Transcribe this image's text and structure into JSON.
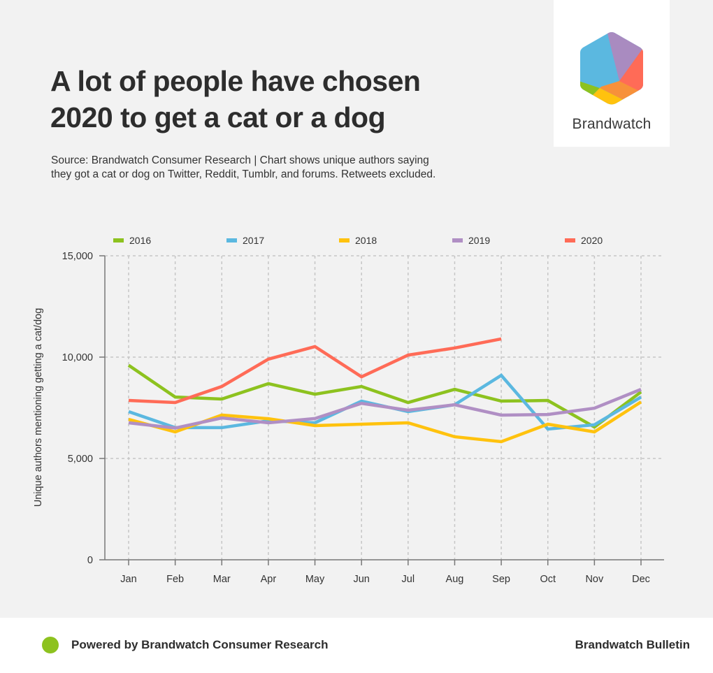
{
  "header": {
    "title_line1": "A lot of people have chosen",
    "title_line2": "2020 to get a cat or a dog",
    "subtitle": "Source: Brandwatch Consumer Research | Chart shows unique authors saying they got a cat or dog on Twitter, Reddit, Tumblr, and forums. Retweets excluded."
  },
  "logo": {
    "name": "Brandwatch",
    "icon": "brandwatch-hexagon-logo"
  },
  "footer": {
    "left_text": "Powered by Brandwatch Consumer Research",
    "right_text": "Brandwatch Bulletin",
    "dot_color": "#8dc21f"
  },
  "chart_data": {
    "type": "line",
    "title": "A lot of people have chosen 2020 to get a cat or a dog",
    "xlabel": "",
    "ylabel": "Unique authors mentioning getting a cat/dog",
    "categories": [
      "Jan",
      "Feb",
      "Mar",
      "Apr",
      "May",
      "Jun",
      "Jul",
      "Aug",
      "Sep",
      "Oct",
      "Nov",
      "Dec"
    ],
    "ylim": [
      0,
      15000
    ],
    "yticks": [
      0,
      5000,
      10000,
      15000
    ],
    "ytick_labels": [
      "0",
      "5,000",
      "10,000",
      "15,000"
    ],
    "grid": true,
    "legend_position": "top",
    "series": [
      {
        "name": "2016",
        "color": "#8dc21f",
        "values": [
          9600,
          8030,
          7930,
          8690,
          8170,
          8550,
          7760,
          8410,
          7830,
          7860,
          6550,
          8280
        ]
      },
      {
        "name": "2017",
        "color": "#5bb8e0",
        "values": [
          7310,
          6520,
          6520,
          6860,
          6760,
          7830,
          7310,
          7650,
          9100,
          6450,
          6660,
          8030
        ]
      },
      {
        "name": "2018",
        "color": "#ffc20e",
        "values": [
          6930,
          6310,
          7140,
          6960,
          6620,
          6690,
          6760,
          6070,
          5830,
          6690,
          6310,
          7790
        ]
      },
      {
        "name": "2019",
        "color": "#b08fc4",
        "values": [
          6760,
          6500,
          7000,
          6760,
          6970,
          7720,
          7380,
          7650,
          7140,
          7170,
          7480,
          8410
        ]
      },
      {
        "name": "2020",
        "color": "#ff6b57",
        "values": [
          7860,
          7760,
          8550,
          9900,
          10520,
          9030,
          10100,
          10450,
          10900,
          null,
          null,
          null
        ]
      }
    ]
  }
}
